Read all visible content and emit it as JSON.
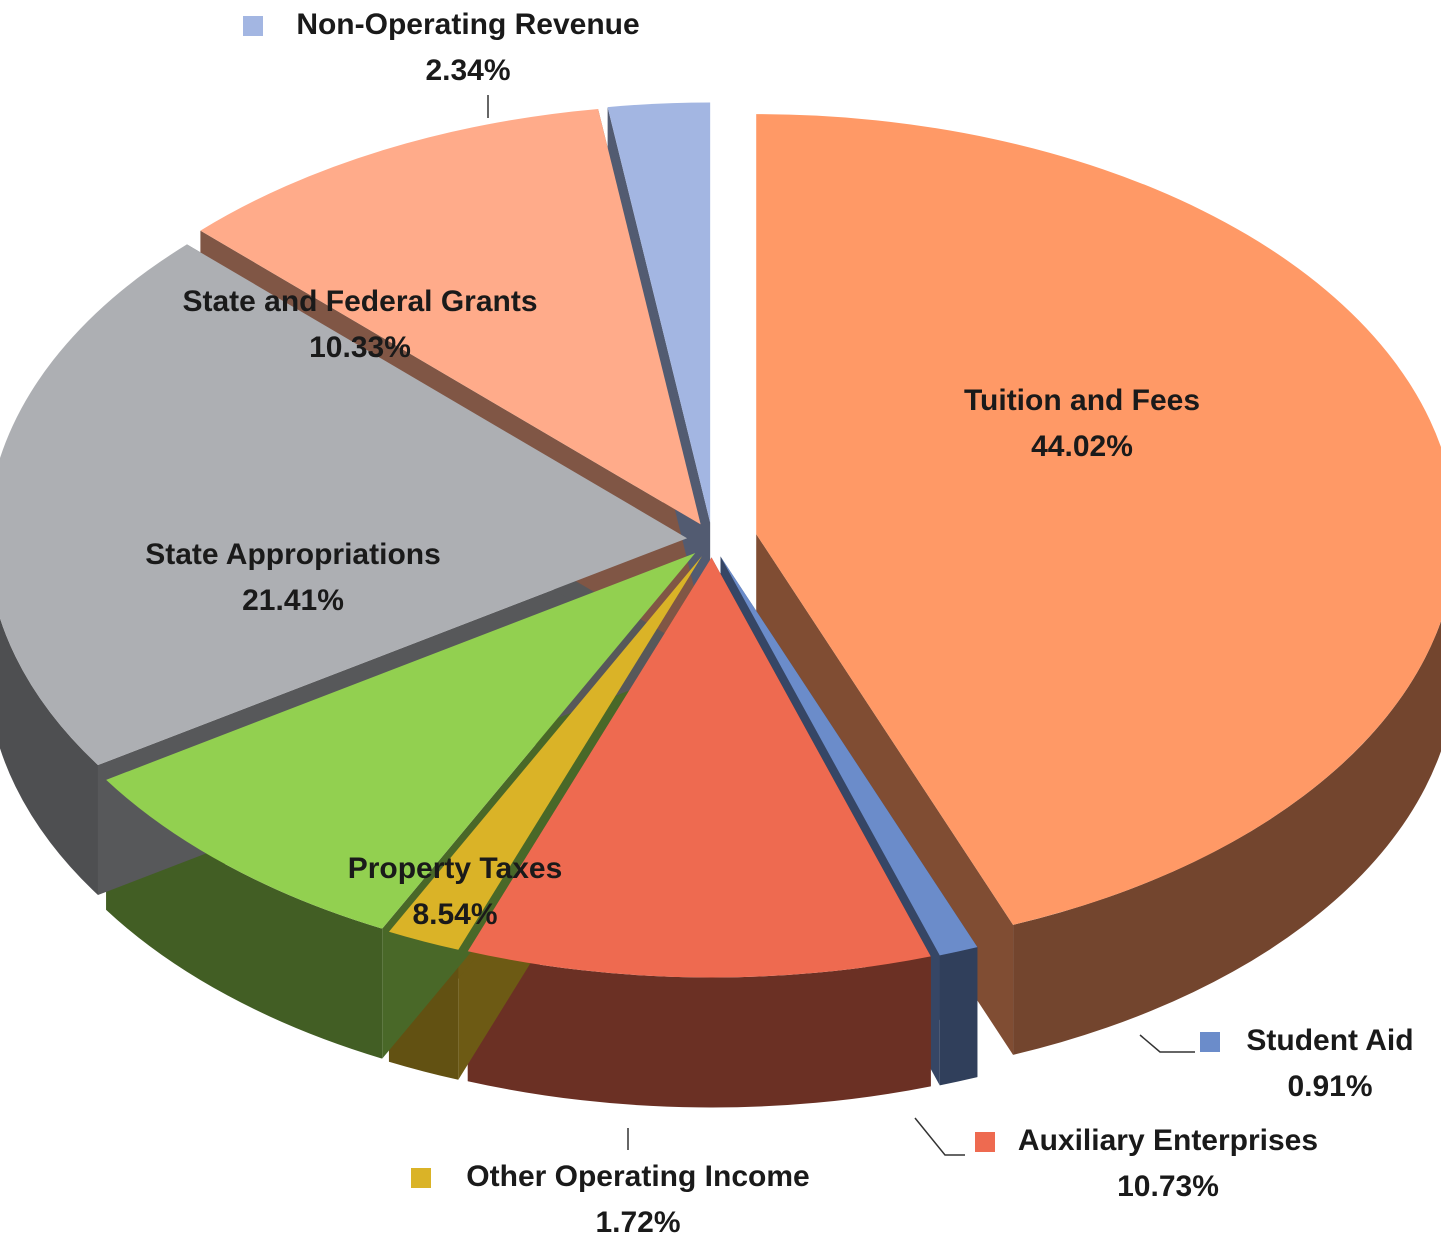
{
  "chart_data": {
    "type": "pie",
    "categories": [
      "Tuition and Fees",
      "Student Aid",
      "Auxiliary Enterprises",
      "Other Operating Income",
      "Property Taxes",
      "State Appropriations",
      "State and Federal Grants",
      "Non-Operating Revenue"
    ],
    "values": [
      44.02,
      0.91,
      10.73,
      1.72,
      8.54,
      21.41,
      10.33,
      2.34
    ],
    "value_labels": [
      "44.02%",
      "0.91%",
      "10.73%",
      "1.72%",
      "8.54%",
      "21.41%",
      "10.33%",
      "2.34%"
    ],
    "colors": [
      "#ff9966",
      "#6b8cca",
      "#ee6a50",
      "#dab327",
      "#92d050",
      "#adafb3",
      "#ffab8a",
      "#a3b6e2"
    ]
  }
}
